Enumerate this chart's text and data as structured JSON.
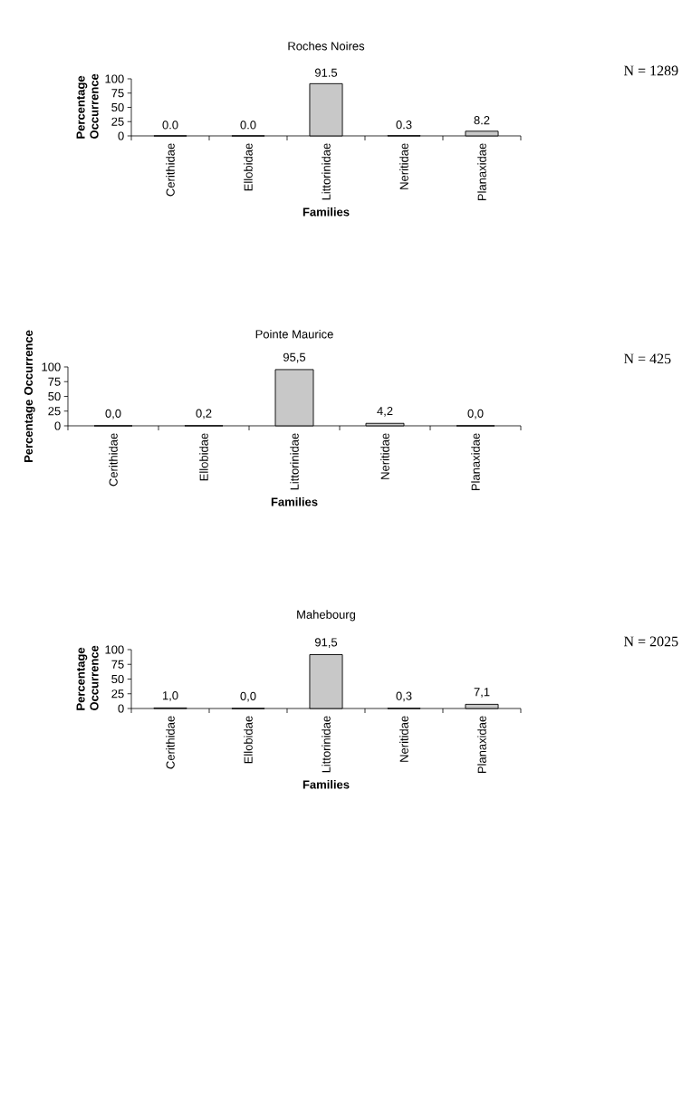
{
  "chart_data": [
    {
      "type": "bar",
      "title": "Roches Noires",
      "xlabel": "Families",
      "ylabel": "Percentage Occurrence",
      "categories": [
        "Cerithidae",
        "Ellobidae",
        "Littorinidae",
        "Neritidae",
        "Planaxidae"
      ],
      "values": [
        0.0,
        0.0,
        91.5,
        0.3,
        8.2
      ],
      "value_labels": [
        "0.0",
        "0.0",
        "91.5",
        "0.3",
        "8.2"
      ],
      "color": "#c8c8c8",
      "ylim": [
        0,
        100
      ],
      "yticks": [
        0,
        25,
        50,
        75,
        100
      ],
      "grid": false,
      "annotations": [
        "N = 1289"
      ]
    },
    {
      "type": "bar",
      "title": "Pointe Maurice",
      "xlabel": "Families",
      "ylabel": "Percentage Occurrence",
      "categories": [
        "Cerithidae",
        "Ellobidae",
        "Littorinidae",
        "Neritidae",
        "Planaxidae"
      ],
      "values": [
        0.0,
        0.2,
        95.5,
        4.2,
        0.0
      ],
      "value_labels": [
        "0,0",
        "0,2",
        "95,5",
        "4,2",
        "0,0"
      ],
      "color": "#c8c8c8",
      "ylim": [
        0,
        100
      ],
      "yticks": [
        0,
        25,
        50,
        75,
        100
      ],
      "grid": false,
      "annotations": [
        "N = 425"
      ]
    },
    {
      "type": "bar",
      "title": "Mahebourg",
      "xlabel": "Families",
      "ylabel": "Percentage Occurrence",
      "categories": [
        "Cerithidae",
        "Ellobidae",
        "Littorinidae",
        "Neritidae",
        "Planaxidae"
      ],
      "values": [
        1.0,
        0.0,
        91.5,
        0.3,
        7.1
      ],
      "value_labels": [
        "1,0",
        "0,0",
        "91,5",
        "0,3",
        "7,1"
      ],
      "color": "#c8c8c8",
      "ylim": [
        0,
        100
      ],
      "yticks": [
        0,
        25,
        50,
        75,
        100
      ],
      "grid": false,
      "annotations": [
        "N = 2025"
      ]
    }
  ]
}
